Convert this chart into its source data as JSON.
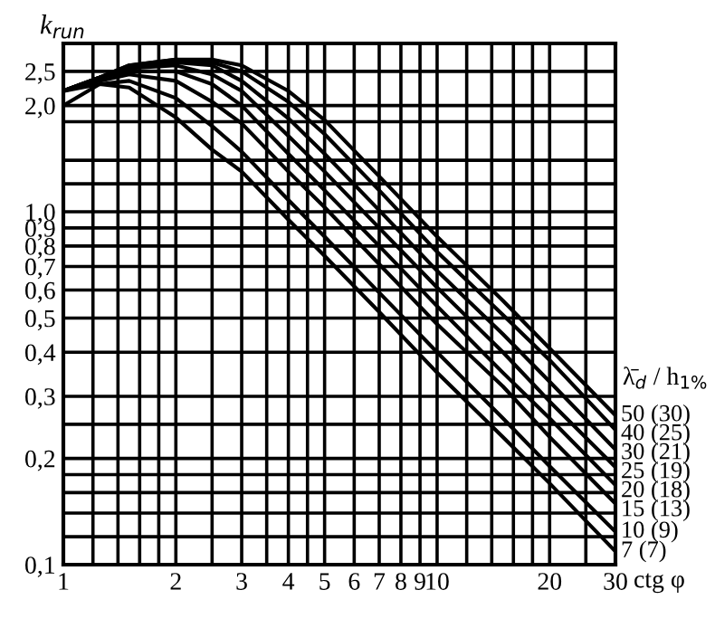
{
  "chart_data": {
    "type": "line",
    "ylabel": "k$_{run}$",
    "xlabel": "ctg φ",
    "legend_title": "λ̄$_{d}$ / h$_{1%}$",
    "log": "xy",
    "grid": true,
    "marker": "none",
    "line_style": "solid",
    "x": [
      1,
      1.25,
      1.5,
      2,
      2.5,
      3,
      4,
      5,
      7,
      10,
      15,
      20,
      30
    ],
    "xlim": [
      1,
      30
    ],
    "ylim": [
      0.1,
      3
    ],
    "xticks": [
      1,
      {
        "value": 1.2,
        "label": null
      },
      {
        "value": 1.4,
        "label": null
      },
      {
        "value": 1.6,
        "label": null
      },
      {
        "value": 1.8,
        "label": null
      },
      2,
      {
        "value": 2.5,
        "label": null
      },
      3,
      {
        "value": 3.5,
        "label": null
      },
      4,
      {
        "value": 4.5,
        "label": null
      },
      5,
      6,
      7,
      8,
      9,
      10,
      {
        "value": 12,
        "label": null
      },
      {
        "value": 14,
        "label": null
      },
      {
        "value": 16,
        "label": null
      },
      {
        "value": 18,
        "label": null
      },
      20,
      {
        "value": 25,
        "label": null
      },
      30
    ],
    "yticks": [
      {
        "value": 0.1,
        "label": "0,1"
      },
      {
        "value": 0.12,
        "label": null
      },
      {
        "value": 0.14,
        "label": null
      },
      {
        "value": 0.16,
        "label": null
      },
      {
        "value": 0.18,
        "label": null
      },
      {
        "value": 0.2,
        "label": "0,2"
      },
      {
        "value": 0.25,
        "label": null
      },
      {
        "value": 0.3,
        "label": "0,3"
      },
      {
        "value": 0.4,
        "label": "0,4"
      },
      {
        "value": 0.5,
        "label": "0,5"
      },
      {
        "value": 0.6,
        "label": "0,6"
      },
      {
        "value": 0.7,
        "label": "0,7"
      },
      {
        "value": 0.8,
        "label": "0,8"
      },
      {
        "value": 0.9,
        "label": "0,9"
      },
      {
        "value": 1.0,
        "label": "1,0"
      },
      {
        "value": 1.2,
        "label": null
      },
      {
        "value": 1.4,
        "label": null
      },
      {
        "value": 1.8,
        "label": null
      },
      {
        "value": 2.0,
        "label": "2,0"
      },
      {
        "value": 2.5,
        "label": "2,5"
      },
      {
        "value": 3.0,
        "label": null
      }
    ],
    "series": [
      {
        "name": "50 (30)",
        "color": "#000000",
        "values": [
          2.2,
          2.4,
          2.6,
          2.7,
          2.7,
          2.6,
          2.2,
          1.82,
          1.26,
          0.85,
          0.56,
          0.41,
          0.265
        ]
      },
      {
        "name": "40 (25)",
        "color": "#000000",
        "values": [
          2.2,
          2.4,
          2.6,
          2.7,
          2.65,
          2.5,
          2.05,
          1.66,
          1.15,
          0.77,
          0.51,
          0.38,
          0.241
        ]
      },
      {
        "name": "30 (21)",
        "color": "#000000",
        "values": [
          2.2,
          2.4,
          2.55,
          2.65,
          2.6,
          2.35,
          1.84,
          1.46,
          1.01,
          0.68,
          0.45,
          0.33,
          0.212
        ]
      },
      {
        "name": "25 (19)",
        "color": "#000000",
        "values": [
          2.2,
          2.4,
          2.55,
          2.6,
          2.45,
          2.2,
          1.64,
          1.3,
          0.9,
          0.61,
          0.4,
          0.29,
          0.189
        ]
      },
      {
        "name": "20 (18)",
        "color": "#000000",
        "values": [
          2.2,
          2.4,
          2.5,
          2.5,
          2.3,
          2.0,
          1.46,
          1.15,
          0.8,
          0.54,
          0.35,
          0.26,
          0.168
        ]
      },
      {
        "name": "15 (13)",
        "color": "#000000",
        "values": [
          2.2,
          2.35,
          2.45,
          2.35,
          2.05,
          1.78,
          1.3,
          1.03,
          0.71,
          0.48,
          0.32,
          0.23,
          0.149
        ]
      },
      {
        "name": "10 (9)",
        "color": "#000000",
        "values": [
          2.2,
          2.3,
          2.35,
          2.1,
          1.75,
          1.48,
          1.08,
          0.85,
          0.59,
          0.4,
          0.26,
          0.19,
          0.124
        ]
      },
      {
        "name": "7 (7)",
        "color": "#000000",
        "values": [
          2.0,
          2.3,
          2.25,
          1.85,
          1.5,
          1.3,
          0.95,
          0.75,
          0.52,
          0.35,
          0.23,
          0.17,
          0.109
        ]
      }
    ]
  }
}
